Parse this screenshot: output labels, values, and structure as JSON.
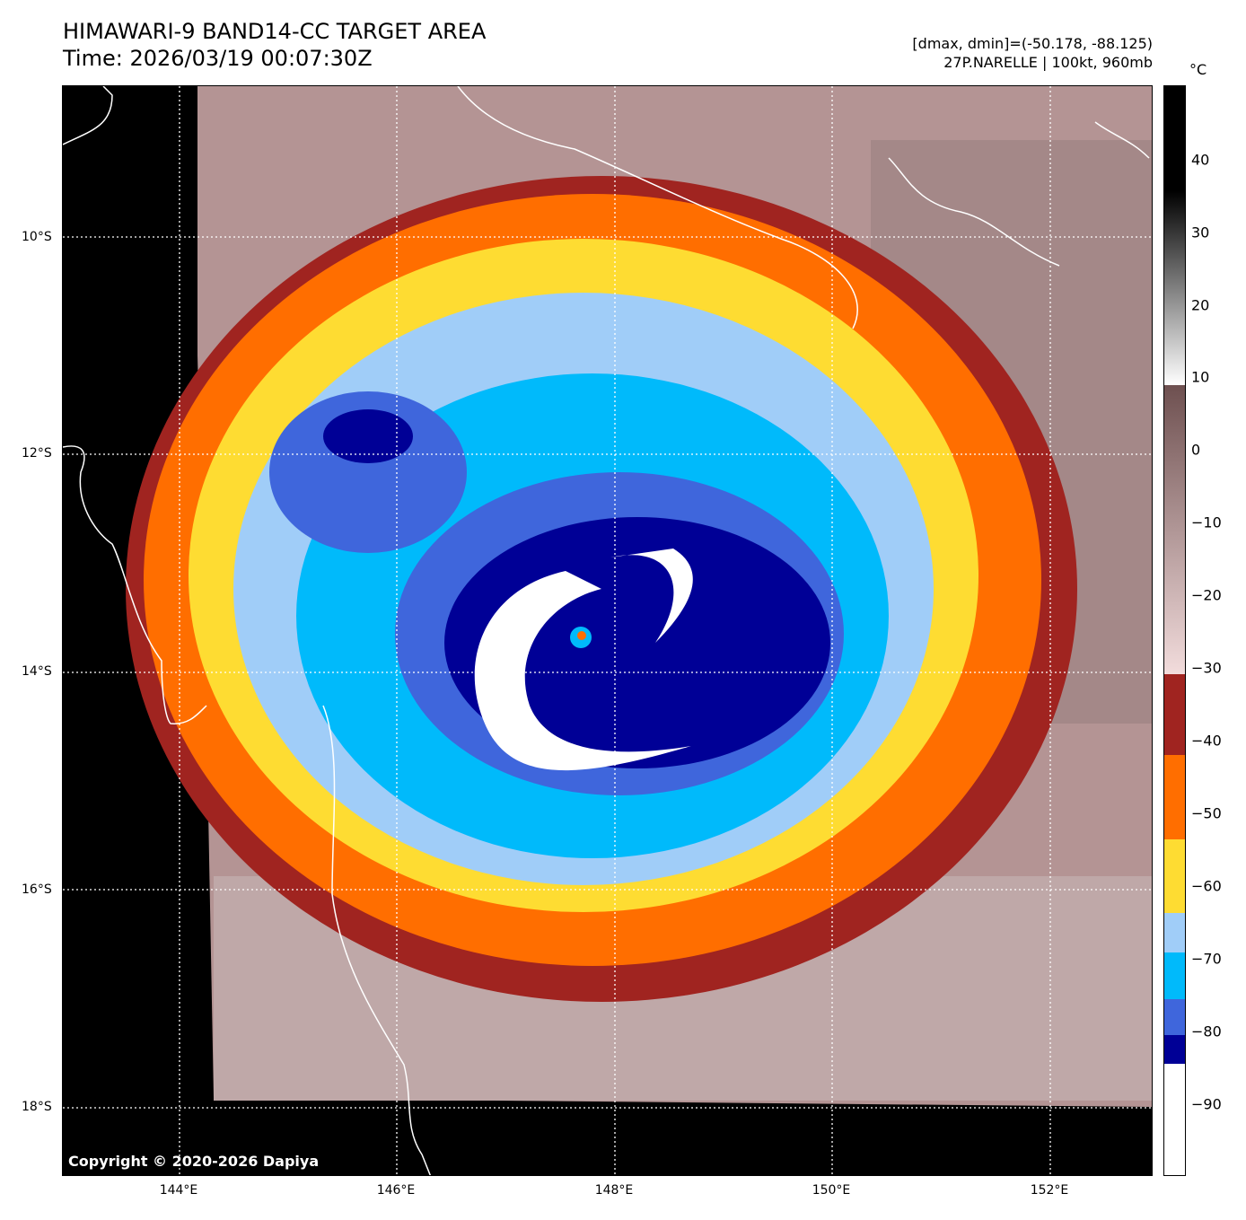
{
  "header": {
    "title": "HIMAWARI-9 BAND14-CC TARGET AREA",
    "time": "Time: 2026/03/19 00:07:30Z",
    "range": "[dmax, dmin]=(-50.178, -88.125)",
    "storm": "27P.NARELLE | 100kt, 960mb"
  },
  "axes": {
    "lat_labels": [
      "10°S",
      "12°S",
      "14°S",
      "16°S",
      "18°S"
    ],
    "lon_labels": [
      "144°E",
      "146°E",
      "148°E",
      "150°E",
      "152°E"
    ]
  },
  "colorbar": {
    "unit": "°C",
    "ticks": [
      "40",
      "30",
      "20",
      "10",
      "0",
      "−10",
      "−20",
      "−30",
      "−40",
      "−50",
      "−60",
      "−70",
      "−80",
      "−90"
    ],
    "colors": {
      "warm": "#000000",
      "light": "#ffffff",
      "brown_start": "#6e5050",
      "pink": "#f2dcdc",
      "dark_red": "#a02420",
      "orange": "#ff6e00",
      "yellow": "#fedc32",
      "light_blue": "#a0cdf8",
      "cyan": "#00bafb",
      "royal_blue": "#3f66dc",
      "navy": "#000096",
      "white": "#ffffff"
    }
  },
  "copyright": "Copyright © 2020-2026 Dapiya"
}
